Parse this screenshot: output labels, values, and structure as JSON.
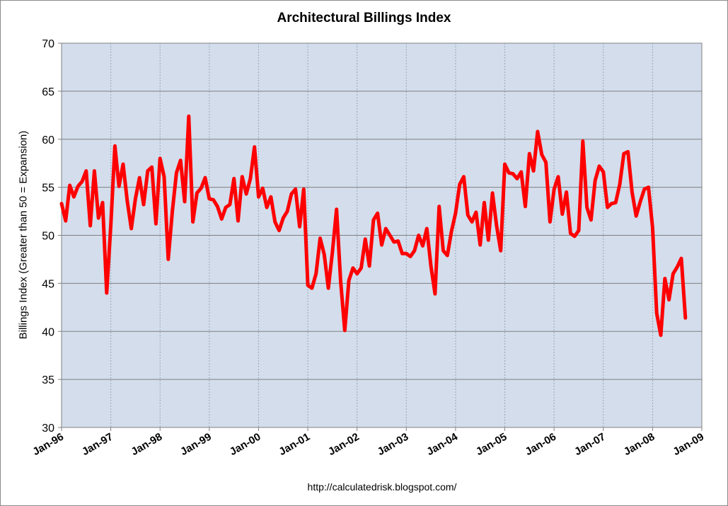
{
  "chart_data": {
    "type": "line",
    "title": "Architectural Billings Index",
    "ylabel": "Billings Index (Greater than 50 = Expansion)",
    "xlabel": "",
    "source": "http://calculatedrisk.blogspot.com/",
    "ylim": [
      30,
      70
    ],
    "y_ticks": [
      "30",
      "35",
      "40",
      "45",
      "50",
      "55",
      "60",
      "65",
      "70"
    ],
    "x_ticks": [
      "Jan-96",
      "Jan-97",
      "Jan-98",
      "Jan-99",
      "Jan-00",
      "Jan-01",
      "Jan-02",
      "Jan-03",
      "Jan-04",
      "Jan-05",
      "Jan-06",
      "Jan-07",
      "Jan-08",
      "Jan-09"
    ],
    "x_start": "Jan-96",
    "series": [
      {
        "color": "#ff0000",
        "values": [
          53.3,
          51.5,
          55.2,
          54.0,
          55.1,
          55.6,
          56.7,
          51.0,
          56.7,
          51.8,
          53.4,
          44.0,
          51.0,
          59.3,
          55.1,
          57.4,
          53.6,
          50.7,
          53.8,
          56.0,
          53.2,
          56.7,
          57.1,
          51.2,
          58.0,
          56.1,
          47.5,
          52.5,
          56.5,
          57.8,
          53.5,
          62.4,
          51.4,
          54.4,
          54.9,
          56.0,
          53.8,
          53.7,
          53.0,
          51.7,
          52.9,
          53.2,
          55.9,
          51.5,
          56.1,
          54.3,
          55.9,
          59.2,
          54.0,
          54.9,
          52.9,
          54.0,
          51.4,
          50.5,
          51.8,
          52.5,
          54.3,
          54.8,
          50.9,
          54.8,
          44.8,
          44.5,
          46.0,
          49.7,
          48.0,
          44.5,
          48.3,
          52.7,
          45.2,
          40.1,
          45.3,
          46.6,
          46.0,
          46.6,
          49.6,
          46.8,
          51.6,
          52.3,
          49.0,
          50.7,
          50.0,
          49.3,
          49.4,
          48.1,
          48.1,
          47.8,
          48.4,
          50.0,
          48.9,
          50.7,
          46.8,
          43.9,
          53.0,
          48.4,
          47.9,
          50.4,
          52.3,
          55.3,
          56.1,
          52.1,
          51.4,
          52.4,
          49.0,
          53.4,
          49.5,
          54.4,
          51.0,
          48.4,
          57.4,
          56.5,
          56.4,
          55.9,
          56.6,
          53.0,
          58.5,
          56.7,
          60.8,
          58.4,
          57.6,
          51.4,
          54.8,
          56.1,
          52.2,
          54.5,
          50.2,
          49.9,
          50.5,
          59.8,
          52.9,
          51.6,
          55.7,
          57.2,
          56.6,
          52.9,
          53.3,
          53.4,
          55.3,
          58.5,
          58.7,
          54.5,
          52.0,
          53.5,
          54.8,
          55.0,
          50.8,
          41.9,
          39.6,
          45.5,
          43.3,
          46.0,
          46.7,
          47.6,
          41.4
        ]
      }
    ],
    "plot_background": "#d3ddec",
    "gridlines": "horizontal, gray"
  }
}
